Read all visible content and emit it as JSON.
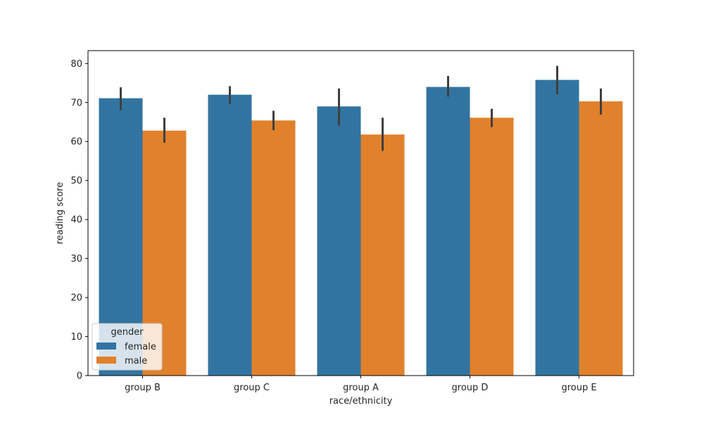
{
  "chart_data": {
    "type": "bar",
    "title": "",
    "xlabel": "race/ethnicity",
    "ylabel": "reading score",
    "categories": [
      "group B",
      "group C",
      "group A",
      "group D",
      "group E"
    ],
    "ylim": [
      0,
      83.3
    ],
    "yticks": [
      0,
      10,
      20,
      30,
      40,
      50,
      60,
      70,
      80
    ],
    "grid": false,
    "legend": {
      "title": "gender",
      "position": "lower-left"
    },
    "series": [
      {
        "name": "female",
        "color": "#3274a1",
        "values": [
          71.1,
          72.0,
          69.0,
          74.0,
          75.8
        ],
        "ci_low": [
          68.1,
          69.7,
          64.1,
          71.5,
          72.1
        ],
        "ci_high": [
          73.9,
          74.2,
          73.6,
          76.8,
          79.4
        ]
      },
      {
        "name": "male",
        "color": "#e1812c",
        "values": [
          62.8,
          65.4,
          61.8,
          66.1,
          70.3
        ],
        "ci_low": [
          59.7,
          62.9,
          57.6,
          63.7,
          66.9
        ],
        "ci_high": [
          66.1,
          67.9,
          66.1,
          68.4,
          73.6
        ]
      }
    ],
    "errorbar_color": "#3f3f3f"
  }
}
